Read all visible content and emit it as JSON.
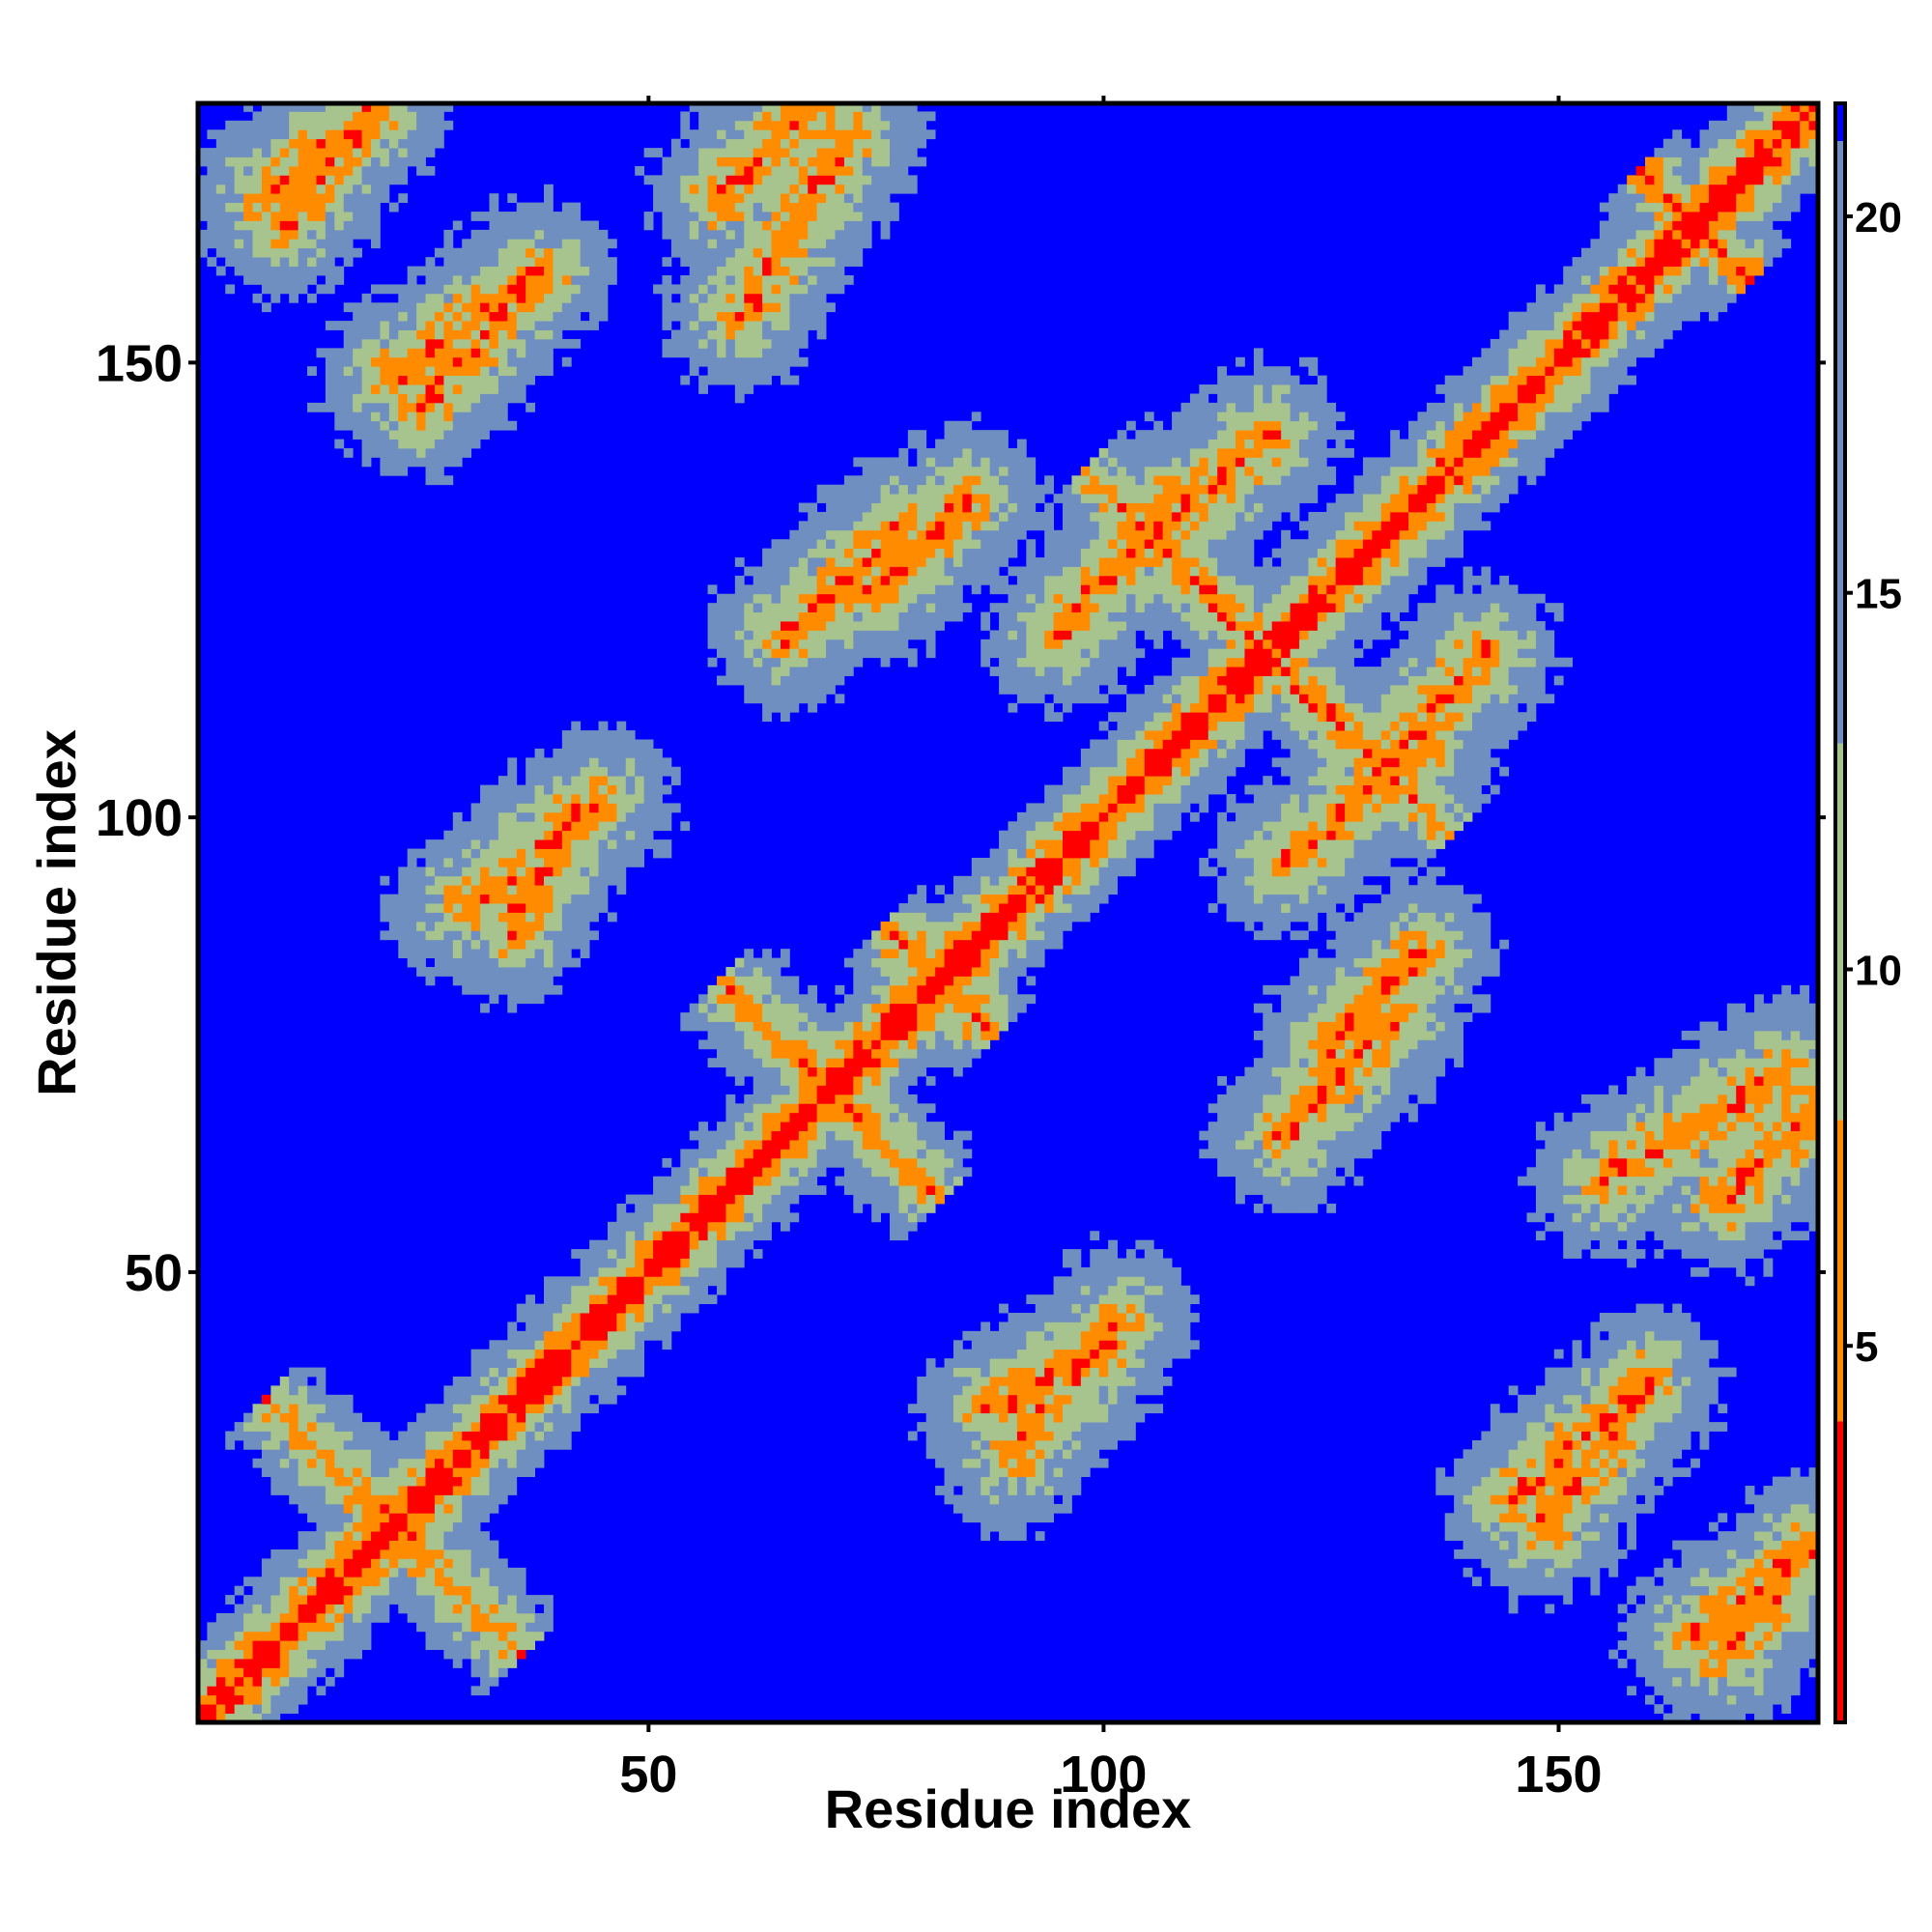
{
  "chart_data": {
    "type": "heatmap",
    "title": "",
    "xlabel": "Residue index",
    "ylabel": "Residue index",
    "n_residues": 178,
    "xlim": [
      0.5,
      178.5
    ],
    "ylim": [
      0.5,
      178.5
    ],
    "x_ticks": [
      50,
      100,
      150
    ],
    "y_ticks": [
      50,
      100,
      150
    ],
    "x_tick_labels": [
      "50",
      "100",
      "150"
    ],
    "y_tick_labels": [
      "50",
      "100",
      "150"
    ],
    "colorbar": {
      "range": [
        0,
        21.5
      ],
      "ticks": [
        5,
        10,
        15,
        20
      ],
      "tick_labels": [
        "5",
        "10",
        "15",
        "20"
      ],
      "colors": {
        "contact": "#ff0000",
        "close": "#ff8c00",
        "mid": "#a8c48e",
        "far": "#6f8fc0",
        "beyond": "#0000ff"
      },
      "thresholds": [
        4,
        8,
        13,
        21
      ]
    },
    "grid": false,
    "legend": "colorbar-right",
    "description_of_values": "distance matrix",
    "contact_features": [
      {
        "kind": "diagonal"
      },
      {
        "kind": "antiparallel",
        "center": [
          22,
          22
        ],
        "half_length": 14
      },
      {
        "kind": "antiparallel",
        "center": [
          70,
          70
        ],
        "half_length": 12
      },
      {
        "kind": "antiparallel",
        "center": [
          82,
          82
        ],
        "half_length": 6
      },
      {
        "kind": "antiparallel",
        "center": [
          118,
          118
        ],
        "half_length": 20
      },
      {
        "kind": "antiparallel",
        "center": [
          165,
          165
        ],
        "half_length": 6
      },
      {
        "kind": "parallel",
        "from": [
          8,
          168
        ],
        "to": [
          20,
          178
        ]
      },
      {
        "kind": "parallel",
        "from": [
          22,
          148
        ],
        "to": [
          38,
          160
        ]
      },
      {
        "kind": "parallel",
        "from": [
          58,
          168
        ],
        "to": [
          68,
          178
        ]
      },
      {
        "kind": "parallel",
        "from": [
          65,
          120
        ],
        "to": [
          78,
          132
        ]
      },
      {
        "kind": "parallel",
        "from": [
          105,
          130
        ],
        "to": [
          118,
          142
        ]
      },
      {
        "kind": "parallel",
        "from": [
          120,
          95
        ],
        "to": [
          135,
          108
        ]
      },
      {
        "kind": "parallel",
        "from": [
          125,
          75
        ],
        "to": [
          135,
          85
        ]
      },
      {
        "kind": "parallel",
        "from": [
          145,
          25
        ],
        "to": [
          160,
          38
        ]
      },
      {
        "kind": "parallel",
        "from": [
          155,
          60
        ],
        "to": [
          175,
          72
        ]
      },
      {
        "kind": "parallel",
        "from": [
          165,
          10
        ],
        "to": [
          178,
          20
        ]
      },
      {
        "kind": "parallel",
        "from": [
          88,
          35
        ],
        "to": [
          100,
          42
        ]
      },
      {
        "kind": "parallel",
        "from": [
          30,
          90
        ],
        "to": [
          45,
          102
        ]
      }
    ]
  }
}
